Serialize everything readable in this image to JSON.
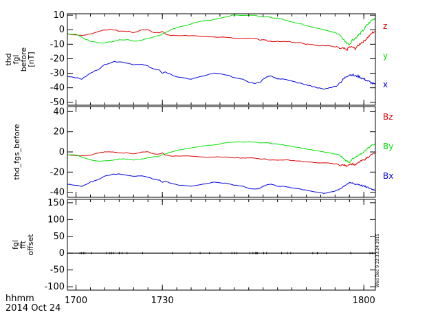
{
  "figure": {
    "date": "2014 Oct 24",
    "time_label": "hhmm",
    "timestamp": "Wed Dec  9 22:33:24 2015"
  },
  "chart_data": [
    {
      "type": "line",
      "ylabel": [
        "thd",
        "fgl",
        "before",
        "[nT]"
      ],
      "ylim": [
        -52,
        11
      ],
      "yticks": [
        10,
        0,
        -10,
        -20,
        -30,
        -40,
        -50
      ],
      "xlim": [
        1697,
        1804
      ],
      "xticks": [
        1700,
        1730,
        1800
      ],
      "series": [
        {
          "name": "z",
          "color": "#e00000",
          "x": [
            1697,
            1700,
            1702,
            1705,
            1708,
            1710,
            1713,
            1715,
            1718,
            1720,
            1723,
            1725,
            1727,
            1729,
            1730,
            1731,
            1733,
            1736,
            1740,
            1744,
            1748,
            1752,
            1755,
            1758,
            1760,
            1762,
            1764,
            1765,
            1766,
            1767,
            1768,
            1769,
            1770,
            1772,
            1774,
            1776,
            1778,
            1780,
            1782,
            1784,
            1786,
            1788,
            1790,
            1792,
            1793,
            1794,
            1795,
            1796,
            1797,
            1798,
            1799,
            1800,
            1801,
            1802,
            1803,
            1804
          ],
          "y": [
            -3,
            -3.5,
            -4,
            -3,
            -1,
            0,
            0,
            -1,
            -1,
            -2,
            0,
            0,
            -2,
            -2,
            -1,
            -3,
            -4,
            -4,
            -4,
            -5,
            -5,
            -5,
            -6,
            -6,
            -6,
            -6,
            -7,
            -7,
            -7,
            -8,
            -8,
            -8,
            -8,
            -8,
            -8,
            -9,
            -9,
            -10,
            -10,
            -11,
            -11,
            -11,
            -12,
            -13,
            -13,
            -14,
            -12,
            -12,
            -13,
            -11,
            -9,
            -8,
            -6,
            -4,
            -2,
            -1
          ]
        },
        {
          "name": "y",
          "color": "#00e000",
          "x": [
            1697,
            1700,
            1702,
            1705,
            1708,
            1710,
            1713,
            1715,
            1718,
            1720,
            1723,
            1725,
            1727,
            1729,
            1730,
            1731,
            1733,
            1736,
            1740,
            1744,
            1748,
            1752,
            1755,
            1758,
            1760,
            1762,
            1764,
            1765,
            1766,
            1767,
            1768,
            1769,
            1770,
            1772,
            1774,
            1776,
            1778,
            1780,
            1782,
            1784,
            1786,
            1788,
            1790,
            1792,
            1793,
            1794,
            1795,
            1796,
            1797,
            1798,
            1799,
            1800,
            1801,
            1802,
            1803,
            1804
          ],
          "y": [
            -3,
            -3,
            -5,
            -8,
            -9,
            -9,
            -8,
            -7,
            -7,
            -8,
            -7,
            -6,
            -5,
            -4,
            -3,
            -2,
            0,
            2,
            4,
            6,
            7,
            9,
            10,
            10,
            10,
            10,
            9,
            9,
            9,
            9,
            8,
            8,
            8,
            7,
            6,
            5,
            4,
            3,
            2,
            1,
            0,
            -1,
            -2,
            -4,
            -7,
            -9,
            -10,
            -7,
            -6,
            -4,
            -2,
            0,
            3,
            5,
            7,
            8
          ]
        },
        {
          "name": "x",
          "color": "#0000e0",
          "x": [
            1697,
            1700,
            1702,
            1705,
            1708,
            1710,
            1713,
            1715,
            1718,
            1720,
            1723,
            1725,
            1727,
            1729,
            1730,
            1731,
            1733,
            1736,
            1740,
            1744,
            1748,
            1752,
            1755,
            1758,
            1760,
            1762,
            1764,
            1765,
            1766,
            1767,
            1768,
            1769,
            1770,
            1772,
            1774,
            1776,
            1778,
            1780,
            1782,
            1784,
            1786,
            1788,
            1790,
            1792,
            1793,
            1794,
            1795,
            1796,
            1797,
            1798,
            1799,
            1800,
            1801,
            1802,
            1803,
            1804
          ],
          "y": [
            -32,
            -33,
            -34,
            -30,
            -27,
            -24,
            -22,
            -22,
            -23,
            -24,
            -24,
            -25,
            -27,
            -28,
            -30,
            -29,
            -31,
            -33,
            -34,
            -32,
            -30,
            -31,
            -33,
            -34,
            -36,
            -37,
            -36,
            -34,
            -33,
            -32,
            -32,
            -33,
            -34,
            -34,
            -35,
            -36,
            -37,
            -38,
            -39,
            -40,
            -41,
            -40,
            -39,
            -36,
            -34,
            -32,
            -31,
            -31,
            -32,
            -32,
            -33,
            -34,
            -35,
            -36,
            -37,
            -38
          ]
        }
      ]
    },
    {
      "type": "line",
      "ylabel": [
        "thd_fgs_before"
      ],
      "ylim": [
        -45,
        45
      ],
      "yticks": [
        40,
        20,
        0,
        -20,
        -40
      ],
      "xlim": [
        1697,
        1804
      ],
      "xticks": [
        1700,
        1730,
        1800
      ],
      "series": [
        {
          "name": "Bz",
          "color": "#e00000",
          "x": [
            1697,
            1700,
            1702,
            1705,
            1708,
            1710,
            1713,
            1715,
            1718,
            1720,
            1723,
            1725,
            1727,
            1729,
            1730,
            1731,
            1733,
            1736,
            1740,
            1744,
            1748,
            1752,
            1755,
            1758,
            1760,
            1762,
            1764,
            1765,
            1766,
            1767,
            1768,
            1769,
            1770,
            1772,
            1774,
            1776,
            1778,
            1780,
            1782,
            1784,
            1786,
            1788,
            1790,
            1792,
            1793,
            1794,
            1795,
            1796,
            1797,
            1798,
            1799,
            1800,
            1801,
            1802,
            1803,
            1804
          ],
          "y": [
            -3,
            -3.5,
            -4,
            -3,
            -1,
            0,
            0,
            -1,
            -1,
            -2,
            0,
            0,
            -2,
            -2,
            -1,
            -3,
            -4,
            -4,
            -4,
            -5,
            -5,
            -5,
            -6,
            -6,
            -6,
            -6,
            -7,
            -7,
            -7,
            -8,
            -8,
            -8,
            -8,
            -8,
            -8,
            -9,
            -9,
            -10,
            -10,
            -11,
            -11,
            -11,
            -12,
            -13,
            -13,
            -14,
            -12,
            -12,
            -13,
            -11,
            -9,
            -8,
            -6,
            -4,
            -2,
            -1
          ]
        },
        {
          "name": "By",
          "color": "#00e000",
          "x": [
            1697,
            1700,
            1702,
            1705,
            1708,
            1710,
            1713,
            1715,
            1718,
            1720,
            1723,
            1725,
            1727,
            1729,
            1730,
            1731,
            1733,
            1736,
            1740,
            1744,
            1748,
            1752,
            1755,
            1758,
            1760,
            1762,
            1764,
            1765,
            1766,
            1767,
            1768,
            1769,
            1770,
            1772,
            1774,
            1776,
            1778,
            1780,
            1782,
            1784,
            1786,
            1788,
            1790,
            1792,
            1793,
            1794,
            1795,
            1796,
            1797,
            1798,
            1799,
            1800,
            1801,
            1802,
            1803,
            1804
          ],
          "y": [
            -3,
            -3,
            -5,
            -8,
            -9,
            -9,
            -8,
            -7,
            -7,
            -8,
            -7,
            -6,
            -5,
            -4,
            -3,
            -2,
            0,
            2,
            4,
            6,
            7,
            9,
            10,
            10,
            10,
            10,
            9,
            9,
            9,
            9,
            8,
            8,
            8,
            7,
            6,
            5,
            4,
            3,
            2,
            1,
            0,
            -1,
            -2,
            -4,
            -7,
            -9,
            -10,
            -7,
            -6,
            -4,
            -2,
            0,
            3,
            5,
            7,
            8
          ]
        },
        {
          "name": "Bx",
          "color": "#0000e0",
          "x": [
            1697,
            1700,
            1702,
            1705,
            1708,
            1710,
            1713,
            1715,
            1718,
            1720,
            1723,
            1725,
            1727,
            1729,
            1730,
            1731,
            1733,
            1736,
            1740,
            1744,
            1748,
            1752,
            1755,
            1758,
            1760,
            1762,
            1764,
            1765,
            1766,
            1767,
            1768,
            1769,
            1770,
            1772,
            1774,
            1776,
            1778,
            1780,
            1782,
            1784,
            1786,
            1788,
            1790,
            1792,
            1793,
            1794,
            1795,
            1796,
            1797,
            1798,
            1799,
            1800,
            1801,
            1802,
            1803,
            1804
          ],
          "y": [
            -32,
            -33,
            -34,
            -30,
            -27,
            -24,
            -22,
            -22,
            -23,
            -24,
            -24,
            -25,
            -27,
            -28,
            -30,
            -29,
            -31,
            -33,
            -34,
            -32,
            -30,
            -31,
            -33,
            -34,
            -36,
            -37,
            -36,
            -34,
            -33,
            -32,
            -32,
            -33,
            -34,
            -34,
            -35,
            -36,
            -37,
            -38,
            -39,
            -40,
            -41,
            -40,
            -39,
            -36,
            -34,
            -32,
            -31,
            -31,
            -32,
            -32,
            -33,
            -34,
            -35,
            -36,
            -37,
            -38
          ]
        }
      ]
    },
    {
      "type": "line",
      "ylabel": [
        "fgl",
        "fft",
        "offset"
      ],
      "ylim": [
        -110,
        160
      ],
      "yticks": [
        150,
        100,
        50,
        0,
        -50,
        -100
      ],
      "xlim": [
        1697,
        1804
      ],
      "xticks": [
        1700,
        1730,
        1800
      ],
      "series": [
        {
          "color": "#000000",
          "x": [
            1697,
            1804
          ],
          "y": [
            0,
            0
          ]
        }
      ]
    }
  ]
}
